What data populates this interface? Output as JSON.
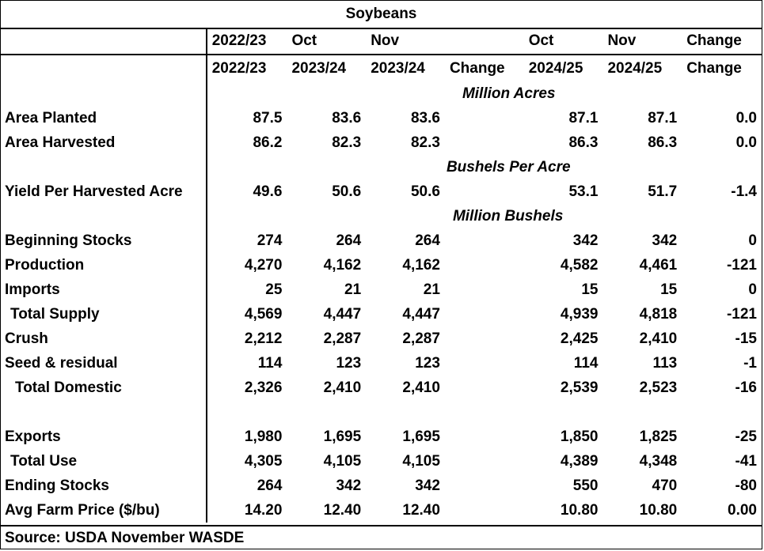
{
  "title": "Soybeans",
  "header_row1": [
    "",
    "2022/23",
    "Oct",
    "Nov",
    "",
    "Oct",
    "Nov",
    "Change"
  ],
  "header_row2": [
    "",
    "2022/23",
    "2023/24",
    "2023/24",
    "Change",
    "2024/25",
    "2024/25",
    "Change"
  ],
  "sections": {
    "acres": "Million Acres",
    "yield": "Bushels Per Acre",
    "bushels": "Million Bushels"
  },
  "rows": {
    "area_planted": {
      "label": "Area Planted",
      "v": [
        "87.5",
        "83.6",
        "83.6",
        "",
        "87.1",
        "87.1",
        "0.0"
      ]
    },
    "area_harvested": {
      "label": "Area Harvested",
      "v": [
        "86.2",
        "82.3",
        "82.3",
        "",
        "86.3",
        "86.3",
        "0.0"
      ]
    },
    "yield": {
      "label": "Yield Per Harvested Acre",
      "v": [
        "49.6",
        "50.6",
        "50.6",
        "",
        "53.1",
        "51.7",
        "-1.4"
      ]
    },
    "beginning_stocks": {
      "label": "Beginning Stocks",
      "v": [
        "274",
        "264",
        "264",
        "",
        "342",
        "342",
        "0"
      ]
    },
    "production": {
      "label": "Production",
      "v": [
        "4,270",
        "4,162",
        "4,162",
        "",
        "4,582",
        "4,461",
        "-121"
      ]
    },
    "imports": {
      "label": "Imports",
      "v": [
        "25",
        "21",
        "21",
        "",
        "15",
        "15",
        "0"
      ]
    },
    "total_supply": {
      "label": "Total Supply",
      "v": [
        "4,569",
        "4,447",
        "4,447",
        "",
        "4,939",
        "4,818",
        "-121"
      ]
    },
    "crush": {
      "label": "Crush",
      "v": [
        "2,212",
        "2,287",
        "2,287",
        "",
        "2,425",
        "2,410",
        "-15"
      ]
    },
    "seed_residual": {
      "label": "Seed & residual",
      "v": [
        "114",
        "123",
        "123",
        "",
        "114",
        "113",
        "-1"
      ]
    },
    "total_domestic": {
      "label": "Total Domestic",
      "v": [
        "2,326",
        "2,410",
        "2,410",
        "",
        "2,539",
        "2,523",
        "-16"
      ]
    },
    "exports": {
      "label": "Exports",
      "v": [
        "1,980",
        "1,695",
        "1,695",
        "",
        "1,850",
        "1,825",
        "-25"
      ]
    },
    "total_use": {
      "label": "Total Use",
      "v": [
        "4,305",
        "4,105",
        "4,105",
        "",
        "4,389",
        "4,348",
        "-41"
      ]
    },
    "ending_stocks": {
      "label": "Ending Stocks",
      "v": [
        "264",
        "342",
        "342",
        "",
        "550",
        "470",
        "-80"
      ]
    },
    "avg_farm_price": {
      "label": "Avg Farm Price ($/bu)",
      "v": [
        "14.20",
        "12.40",
        "12.40",
        "",
        "10.80",
        "10.80",
        "0.00"
      ]
    }
  },
  "source": "Source: USDA November WASDE"
}
